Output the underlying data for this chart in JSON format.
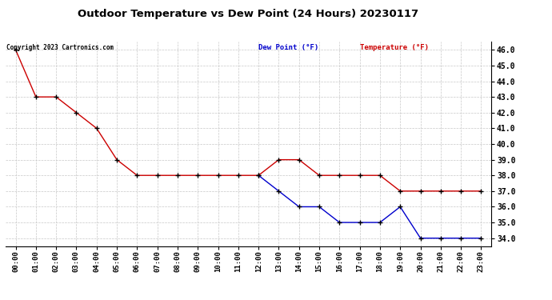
{
  "title": "Outdoor Temperature vs Dew Point (24 Hours) 20230117",
  "copyright": "Copyright 2023 Cartronics.com",
  "legend_dew": "Dew Point (°F)",
  "legend_temp": "Temperature (°F)",
  "hours": [
    "00:00",
    "01:00",
    "02:00",
    "03:00",
    "04:00",
    "05:00",
    "06:00",
    "07:00",
    "08:00",
    "09:00",
    "10:00",
    "11:00",
    "12:00",
    "13:00",
    "14:00",
    "15:00",
    "16:00",
    "17:00",
    "18:00",
    "19:00",
    "20:00",
    "21:00",
    "22:00",
    "23:00"
  ],
  "temperature": [
    46.0,
    43.0,
    43.0,
    42.0,
    41.0,
    39.0,
    38.0,
    38.0,
    38.0,
    38.0,
    38.0,
    38.0,
    38.0,
    39.0,
    39.0,
    38.0,
    38.0,
    38.0,
    38.0,
    37.0,
    37.0,
    37.0,
    37.0,
    37.0
  ],
  "dew_point": [
    null,
    null,
    null,
    null,
    null,
    null,
    null,
    null,
    null,
    null,
    null,
    null,
    38.0,
    37.0,
    36.0,
    36.0,
    35.0,
    35.0,
    35.0,
    36.0,
    34.0,
    34.0,
    34.0,
    34.0
  ],
  "ylim_min": 33.5,
  "ylim_max": 46.5,
  "yticks": [
    34.0,
    35.0,
    36.0,
    37.0,
    38.0,
    39.0,
    40.0,
    41.0,
    42.0,
    43.0,
    44.0,
    45.0,
    46.0
  ],
  "temp_color": "#cc0000",
  "dew_color": "#0000cc",
  "marker_color": "#000000",
  "bg_color": "#ffffff",
  "grid_color": "#c8c8c8",
  "title_color": "#000000",
  "copyright_color": "#000000",
  "legend_dew_color": "#0000cc",
  "legend_temp_color": "#cc0000",
  "figwidth": 6.9,
  "figheight": 3.75,
  "dpi": 100
}
